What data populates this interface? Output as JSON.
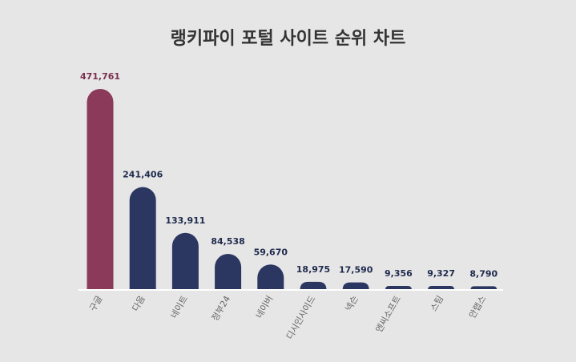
{
  "chart_data": {
    "type": "bar",
    "title": "랭키파이 포털 사이트 순위 차트",
    "categories": [
      "구글",
      "다음",
      "네이트",
      "정부24",
      "네이버",
      "디시인사이드",
      "넥슨",
      "엔씨소프트",
      "스팀",
      "안랩스"
    ],
    "values": [
      471761,
      241406,
      133911,
      84538,
      59670,
      18975,
      17590,
      9356,
      9327,
      8790
    ],
    "value_labels": [
      "471,761",
      "241,406",
      "133,911",
      "84,538",
      "59,670",
      "18,975",
      "17,590",
      "9,356",
      "9,327",
      "8,790"
    ],
    "ylim": [
      0,
      471761
    ],
    "grid": false,
    "legend": "none",
    "colors": {
      "highlight_bar": "#8b3a5a",
      "bar": "#2b3760",
      "highlight_label": "#7a2f4d",
      "label": "#1f2a4d",
      "baseline": "#ffffff",
      "background": "#e6e6e6"
    }
  }
}
